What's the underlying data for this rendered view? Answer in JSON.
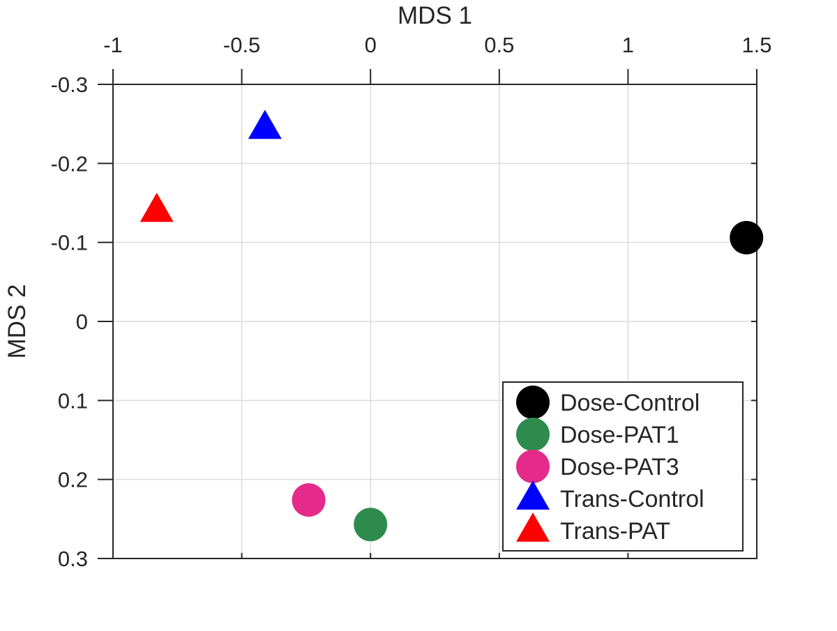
{
  "chart_data": {
    "type": "scatter",
    "xlabel": "MDS 1",
    "ylabel": "MDS 2",
    "xlim": [
      -1,
      1.5
    ],
    "ylim": [
      -0.3,
      0.3
    ],
    "x_ticks": [
      -1,
      -0.5,
      0,
      0.5,
      1,
      1.5
    ],
    "x_tick_labels": [
      "-1",
      "-0.5",
      "0",
      "0.5",
      "1",
      "1.5"
    ],
    "y_ticks": [
      -0.3,
      -0.2,
      -0.1,
      0,
      0.1,
      0.2,
      0.3
    ],
    "y_tick_labels": [
      "-0.3",
      "-0.2",
      "-0.1",
      "0",
      "0.1",
      "0.2",
      "0.3"
    ],
    "x_axis_location": "top",
    "y_axis_reversed": true,
    "grid": true,
    "legend_position": "bottom-right",
    "series": [
      {
        "name": "Dose-Control",
        "marker": "circle",
        "color": "#000000",
        "x": [
          1.46
        ],
        "y": [
          -0.106
        ]
      },
      {
        "name": "Dose-PAT1",
        "marker": "circle",
        "color": "#2E8B4E",
        "x": [
          0.0
        ],
        "y": [
          0.257
        ]
      },
      {
        "name": "Dose-PAT3",
        "marker": "circle",
        "color": "#E52A8A",
        "x": [
          -0.24
        ],
        "y": [
          0.226
        ]
      },
      {
        "name": "Trans-Control",
        "marker": "triangle",
        "color": "#0000FF",
        "x": [
          -0.41
        ],
        "y": [
          -0.245
        ]
      },
      {
        "name": "Trans-PAT",
        "marker": "triangle",
        "color": "#FF0000",
        "x": [
          -0.83
        ],
        "y": [
          -0.14
        ]
      }
    ]
  }
}
